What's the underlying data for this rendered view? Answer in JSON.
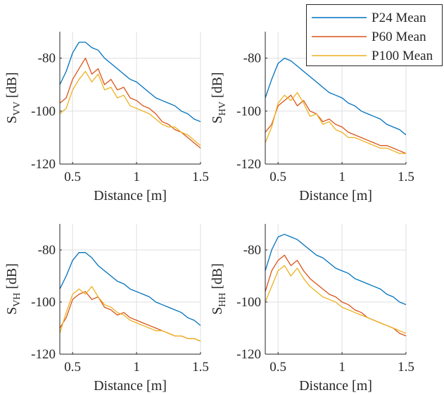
{
  "legend": {
    "entries": [
      {
        "label": "P24 Mean",
        "color": "#0072BD"
      },
      {
        "label": "P60 Mean",
        "color": "#D95319"
      },
      {
        "label": "P100 Mean",
        "color": "#EDB120"
      }
    ]
  },
  "chart_data": [
    {
      "type": "line",
      "ylabel_main": "S",
      "ylabel_sub": "VV",
      "ylabel_unit": " [dB]",
      "xlabel": "Distance [m]",
      "xlim": [
        0.4,
        1.5
      ],
      "ylim": [
        -120,
        -70
      ],
      "xticks": [
        0.5,
        1,
        1.5
      ],
      "xtick_labels": [
        "0.5",
        "1",
        "1.5"
      ],
      "yticks": [
        -80,
        -100,
        -120
      ],
      "ytick_labels": [
        "-80",
        "-100",
        "-120"
      ],
      "grid": true,
      "series": [
        {
          "name": "P24 Mean",
          "x": [
            0.4,
            0.45,
            0.5,
            0.55,
            0.6,
            0.65,
            0.7,
            0.75,
            0.8,
            0.85,
            0.9,
            0.95,
            1.0,
            1.05,
            1.1,
            1.15,
            1.2,
            1.25,
            1.3,
            1.35,
            1.4,
            1.45,
            1.5
          ],
          "y": [
            -90,
            -85,
            -78,
            -74,
            -74,
            -76,
            -77,
            -80,
            -82,
            -84,
            -86,
            -88,
            -89,
            -91,
            -93,
            -95,
            -96,
            -97,
            -98,
            -100,
            -101,
            -103,
            -104
          ]
        },
        {
          "name": "P60 Mean",
          "x": [
            0.4,
            0.45,
            0.5,
            0.55,
            0.6,
            0.65,
            0.7,
            0.75,
            0.8,
            0.85,
            0.9,
            0.95,
            1.0,
            1.05,
            1.1,
            1.15,
            1.2,
            1.25,
            1.3,
            1.35,
            1.4,
            1.45,
            1.5
          ],
          "y": [
            -97,
            -95,
            -88,
            -84,
            -80,
            -86,
            -84,
            -90,
            -88,
            -92,
            -91,
            -95,
            -96,
            -98,
            -99,
            -101,
            -104,
            -105,
            -107,
            -108,
            -110,
            -112,
            -114
          ]
        },
        {
          "name": "P100 Mean",
          "x": [
            0.4,
            0.45,
            0.5,
            0.55,
            0.6,
            0.65,
            0.7,
            0.75,
            0.8,
            0.85,
            0.9,
            0.95,
            1.0,
            1.05,
            1.1,
            1.15,
            1.2,
            1.25,
            1.3,
            1.35,
            1.4,
            1.45,
            1.5
          ],
          "y": [
            -101,
            -99,
            -92,
            -88,
            -85,
            -89,
            -86,
            -92,
            -91,
            -95,
            -94,
            -98,
            -99,
            -100,
            -101,
            -103,
            -105,
            -106,
            -106,
            -108,
            -109,
            -111,
            -113
          ]
        }
      ]
    },
    {
      "type": "line",
      "ylabel_main": "S",
      "ylabel_sub": "HV",
      "ylabel_unit": " [dB]",
      "xlabel": "Distance [m]",
      "xlim": [
        0.4,
        1.5
      ],
      "ylim": [
        -120,
        -70
      ],
      "xticks": [
        0.5,
        1,
        1.5
      ],
      "xtick_labels": [
        "0.5",
        "1",
        "1.5"
      ],
      "yticks": [
        -80,
        -100,
        -120
      ],
      "ytick_labels": [
        "-80",
        "-100",
        "-120"
      ],
      "grid": true,
      "series": [
        {
          "name": "P24 Mean",
          "x": [
            0.4,
            0.45,
            0.5,
            0.55,
            0.6,
            0.65,
            0.7,
            0.75,
            0.8,
            0.85,
            0.9,
            0.95,
            1.0,
            1.05,
            1.1,
            1.15,
            1.2,
            1.25,
            1.3,
            1.35,
            1.4,
            1.45,
            1.5
          ],
          "y": [
            -95,
            -88,
            -82,
            -80,
            -81,
            -83,
            -85,
            -87,
            -89,
            -91,
            -93,
            -94,
            -95,
            -97,
            -98,
            -100,
            -101,
            -102,
            -103,
            -105,
            -106,
            -107,
            -109
          ]
        },
        {
          "name": "P60 Mean",
          "x": [
            0.4,
            0.45,
            0.5,
            0.55,
            0.6,
            0.65,
            0.7,
            0.75,
            0.8,
            0.85,
            0.9,
            0.95,
            1.0,
            1.05,
            1.1,
            1.15,
            1.2,
            1.25,
            1.3,
            1.35,
            1.4,
            1.45,
            1.5
          ],
          "y": [
            -108,
            -105,
            -98,
            -96,
            -94,
            -98,
            -96,
            -100,
            -101,
            -104,
            -103,
            -105,
            -106,
            -108,
            -109,
            -110,
            -111,
            -112,
            -113,
            -113,
            -114,
            -115,
            -116
          ]
        },
        {
          "name": "P100 Mean",
          "x": [
            0.4,
            0.45,
            0.5,
            0.55,
            0.6,
            0.65,
            0.7,
            0.75,
            0.8,
            0.85,
            0.9,
            0.95,
            1.0,
            1.05,
            1.1,
            1.15,
            1.2,
            1.25,
            1.3,
            1.35,
            1.4,
            1.45,
            1.5
          ],
          "y": [
            -112,
            -106,
            -97,
            -94,
            -96,
            -93,
            -97,
            -102,
            -101,
            -105,
            -104,
            -107,
            -108,
            -110,
            -110,
            -111,
            -112,
            -113,
            -114,
            -114,
            -115,
            -116,
            -116
          ]
        }
      ]
    },
    {
      "type": "line",
      "ylabel_main": "S",
      "ylabel_sub": "VH",
      "ylabel_unit": " [dB]",
      "xlabel": "Distance [m]",
      "xlim": [
        0.4,
        1.5
      ],
      "ylim": [
        -120,
        -70
      ],
      "xticks": [
        0.5,
        1,
        1.5
      ],
      "xtick_labels": [
        "0.5",
        "1",
        "1.5"
      ],
      "yticks": [
        -80,
        -100,
        -120
      ],
      "ytick_labels": [
        "-80",
        "-100",
        "-120"
      ],
      "grid": true,
      "series": [
        {
          "name": "P24 Mean",
          "x": [
            0.4,
            0.45,
            0.5,
            0.55,
            0.6,
            0.65,
            0.7,
            0.75,
            0.8,
            0.85,
            0.9,
            0.95,
            1.0,
            1.05,
            1.1,
            1.15,
            1.2,
            1.25,
            1.3,
            1.35,
            1.4,
            1.45,
            1.5
          ],
          "y": [
            -95,
            -90,
            -84,
            -81,
            -81,
            -83,
            -86,
            -88,
            -90,
            -92,
            -93,
            -95,
            -96,
            -97,
            -98,
            -100,
            -101,
            -102,
            -103,
            -104,
            -106,
            -107,
            -109
          ]
        },
        {
          "name": "P60 Mean",
          "x": [
            0.4,
            0.45,
            0.5,
            0.55,
            0.6,
            0.65,
            0.7,
            0.75,
            0.8,
            0.85,
            0.9,
            0.95,
            1.0,
            1.05,
            1.1,
            1.15,
            1.2,
            1.25,
            1.3,
            1.35,
            1.4,
            1.45,
            1.5
          ],
          "y": [
            -110,
            -106,
            -99,
            -97,
            -96,
            -99,
            -98,
            -102,
            -103,
            -105,
            -104,
            -106,
            -107,
            -108,
            -109,
            -110,
            -111,
            -112,
            -113,
            -113,
            -114,
            -114,
            -115
          ]
        },
        {
          "name": "P100 Mean",
          "x": [
            0.4,
            0.45,
            0.5,
            0.55,
            0.6,
            0.65,
            0.7,
            0.75,
            0.8,
            0.85,
            0.9,
            0.95,
            1.0,
            1.05,
            1.1,
            1.15,
            1.2,
            1.25,
            1.3,
            1.35,
            1.4,
            1.45,
            1.5
          ],
          "y": [
            -112,
            -104,
            -97,
            -95,
            -97,
            -94,
            -98,
            -101,
            -102,
            -104,
            -105,
            -107,
            -108,
            -109,
            -110,
            -111,
            -111,
            -112,
            -113,
            -113,
            -114,
            -114,
            -115
          ]
        }
      ]
    },
    {
      "type": "line",
      "ylabel_main": "S",
      "ylabel_sub": "HH",
      "ylabel_unit": " [dB]",
      "xlabel": "Distance [m]",
      "xlim": [
        0.4,
        1.5
      ],
      "ylim": [
        -120,
        -70
      ],
      "xticks": [
        0.5,
        1,
        1.5
      ],
      "xtick_labels": [
        "0.5",
        "1",
        "1.5"
      ],
      "yticks": [
        -80,
        -100,
        -120
      ],
      "ytick_labels": [
        "-80",
        "-100",
        "-120"
      ],
      "grid": true,
      "series": [
        {
          "name": "P24 Mean",
          "x": [
            0.4,
            0.45,
            0.5,
            0.55,
            0.6,
            0.65,
            0.7,
            0.75,
            0.8,
            0.85,
            0.9,
            0.95,
            1.0,
            1.05,
            1.1,
            1.15,
            1.2,
            1.25,
            1.3,
            1.35,
            1.4,
            1.45,
            1.5
          ],
          "y": [
            -88,
            -80,
            -75,
            -74,
            -75,
            -76,
            -78,
            -80,
            -82,
            -83,
            -85,
            -87,
            -88,
            -89,
            -91,
            -92,
            -93,
            -94,
            -95,
            -97,
            -98,
            -100,
            -101
          ]
        },
        {
          "name": "P60 Mean",
          "x": [
            0.4,
            0.45,
            0.5,
            0.55,
            0.6,
            0.65,
            0.7,
            0.75,
            0.8,
            0.85,
            0.9,
            0.95,
            1.0,
            1.05,
            1.1,
            1.15,
            1.2,
            1.25,
            1.3,
            1.35,
            1.4,
            1.45,
            1.5
          ],
          "y": [
            -96,
            -88,
            -84,
            -82,
            -86,
            -84,
            -88,
            -91,
            -93,
            -95,
            -97,
            -98,
            -100,
            -101,
            -103,
            -104,
            -106,
            -107,
            -108,
            -109,
            -110,
            -112,
            -113
          ]
        },
        {
          "name": "P100 Mean",
          "x": [
            0.4,
            0.45,
            0.5,
            0.55,
            0.6,
            0.65,
            0.7,
            0.75,
            0.8,
            0.85,
            0.9,
            0.95,
            1.0,
            1.05,
            1.1,
            1.15,
            1.2,
            1.25,
            1.3,
            1.35,
            1.4,
            1.45,
            1.5
          ],
          "y": [
            -100,
            -94,
            -88,
            -86,
            -90,
            -87,
            -91,
            -94,
            -96,
            -98,
            -99,
            -100,
            -102,
            -103,
            -104,
            -105,
            -106,
            -107,
            -108,
            -109,
            -110,
            -111,
            -112
          ]
        }
      ]
    }
  ]
}
